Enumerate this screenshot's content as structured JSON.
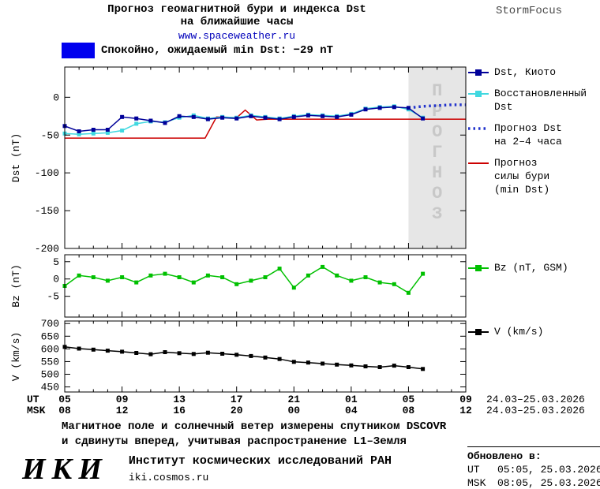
{
  "header": {
    "title_line1": "Прогноз геомагнитной бури и индекса Dst",
    "title_line2": "на ближайшие часы",
    "url": "www.spaceweather.ru",
    "brand": "StormFocus"
  },
  "status": {
    "label": "Спокойно, ожидаемый min Dst: −29 nT",
    "swatch_color": "#0000ee"
  },
  "legend_main": {
    "items": [
      {
        "label": "Dst, Киото"
      },
      {
        "label": "Восстановленный\nDst"
      },
      {
        "label": "Прогноз Dst\nна 2–4 часа"
      },
      {
        "label": "Прогноз\nсилы бури\n(min Dst)"
      }
    ]
  },
  "legend_bz": {
    "label": "Bz (nT, GSM)"
  },
  "legend_v": {
    "label": "V (km/s)"
  },
  "xaxis": {
    "xlim_hours": [
      0,
      28
    ],
    "tick_hours": [
      0,
      4,
      8,
      12,
      16,
      20,
      24,
      28
    ],
    "ut_label": "UT",
    "msk_label": "MSK",
    "ut_ticks": [
      "05",
      "09",
      "13",
      "17",
      "21",
      "01",
      "05",
      "09"
    ],
    "msk_ticks": [
      "08",
      "12",
      "16",
      "20",
      "00",
      "04",
      "08",
      "12"
    ],
    "date_range": "24.03–25.03.2026",
    "x_zero_meaning": "05:00 UT 24.03.2026"
  },
  "chart_data": [
    {
      "type": "line",
      "panel": "dst",
      "title": "Прогноз геомагнитной бури и индекса Dst на ближайшие часы",
      "ylabel": "Dst (nT)",
      "ylim": [
        -200,
        40
      ],
      "yticks": [
        0,
        -50,
        -100,
        -150,
        -200
      ],
      "forecast_region_start_hour": 24,
      "forecast_watermark": "ПРОГНОЗ",
      "series": [
        {
          "id": "dst-kyoto",
          "name": "Dst, Киото",
          "color": "#000099",
          "style": "solid",
          "marker": "square",
          "x": [
            0,
            1,
            2,
            3,
            4,
            5,
            6,
            7,
            8,
            9,
            10,
            11,
            12,
            13,
            14,
            15,
            16,
            17,
            18,
            19,
            20,
            21,
            22,
            23,
            24,
            25
          ],
          "y": [
            -38,
            -45,
            -43,
            -43,
            -26,
            -28,
            -31,
            -34,
            -25,
            -26,
            -29,
            -27,
            -28,
            -25,
            -27,
            -29,
            -26,
            -24,
            -25,
            -26,
            -23,
            -16,
            -14,
            -13,
            -14,
            -28
          ]
        },
        {
          "id": "dst-reconstructed",
          "name": "Восстановленный Dst",
          "color": "#40d8e0",
          "style": "solid",
          "marker": "square",
          "x": [
            0,
            1,
            2,
            3,
            4,
            5,
            6,
            7,
            8,
            9,
            10,
            11,
            12,
            13,
            14,
            15,
            16,
            17,
            18,
            19,
            20,
            21,
            22,
            23,
            24,
            25
          ],
          "y": [
            -48,
            -49,
            -48,
            -47,
            -44,
            -35,
            -32,
            -33,
            -27,
            -24,
            -28,
            -26,
            -27,
            -24,
            -26,
            -28,
            -25,
            -23,
            -24,
            -25,
            -22,
            -15,
            -13,
            -12,
            -16,
            -27
          ]
        },
        {
          "id": "dst-forecast-2-4h",
          "name": "Прогноз Dst на 2–4 часа",
          "color": "#2233cc",
          "style": "dotted",
          "marker": "none",
          "x": [
            24,
            25,
            26,
            27,
            28
          ],
          "y": [
            -14,
            -12,
            -11,
            -10,
            -10
          ]
        },
        {
          "id": "storm-strength-forecast",
          "name": "Прогноз силы бури (min Dst)",
          "color": "#cc0000",
          "style": "solid",
          "marker": "none",
          "x": [
            0,
            9.8,
            10.6,
            12,
            12.6,
            13.4,
            14.2,
            28
          ],
          "y": [
            -54,
            -54,
            -26,
            -27,
            -17,
            -30,
            -29,
            -29
          ]
        }
      ]
    },
    {
      "type": "line",
      "panel": "bz",
      "ylabel": "Bz (nT)",
      "ylim": [
        -11,
        7
      ],
      "yticks": [
        5,
        0,
        -5
      ],
      "series": [
        {
          "id": "bz-gsm",
          "name": "Bz (nT, GSM)",
          "color": "#00c000",
          "style": "solid",
          "marker": "square",
          "x": [
            0,
            1,
            2,
            3,
            4,
            5,
            6,
            7,
            8,
            9,
            10,
            11,
            12,
            13,
            14,
            15,
            16,
            17,
            18,
            19,
            20,
            21,
            22,
            23,
            24,
            25
          ],
          "y": [
            -2,
            1,
            0.5,
            -0.5,
            0.5,
            -1,
            1,
            1.5,
            0.5,
            -1,
            1,
            0.5,
            -1.5,
            -0.5,
            0.5,
            3,
            -2.5,
            1,
            3.5,
            1,
            -0.5,
            0.5,
            -1,
            -1.5,
            -4,
            1.5
          ]
        }
      ]
    },
    {
      "type": "line",
      "panel": "v",
      "ylabel": "V (km/s)",
      "ylim": [
        430,
        710
      ],
      "yticks": [
        450,
        500,
        550,
        600,
        650,
        700
      ],
      "series": [
        {
          "id": "solar-wind-speed",
          "name": "V (km/s)",
          "color": "#000000",
          "style": "solid",
          "marker": "square",
          "x": [
            0,
            1,
            2,
            3,
            4,
            5,
            6,
            7,
            8,
            9,
            10,
            11,
            12,
            13,
            14,
            15,
            16,
            17,
            18,
            19,
            20,
            21,
            22,
            23,
            24,
            25
          ],
          "y": [
            608,
            601,
            597,
            593,
            589,
            584,
            579,
            587,
            583,
            580,
            585,
            581,
            577,
            572,
            566,
            560,
            549,
            546,
            542,
            538,
            535,
            531,
            528,
            534,
            528,
            521
          ]
        }
      ]
    }
  ],
  "footer": {
    "note_line1": "Магнитное поле и солнечный ветер измерены спутником DSCOVR",
    "note_line2": "и сдвинуты вперед, учитывая распространение L1–Земля",
    "logo": "ИКИ",
    "org_name": "Институт космических исследований РАН",
    "org_site": "iki.cosmos.ru"
  },
  "updated": {
    "title": "Обновлено в:",
    "rows": [
      {
        "zone": "UT",
        "time": "05:05, 25.03.2026"
      },
      {
        "zone": "MSK",
        "time": "08:05, 25.03.2026"
      }
    ]
  }
}
